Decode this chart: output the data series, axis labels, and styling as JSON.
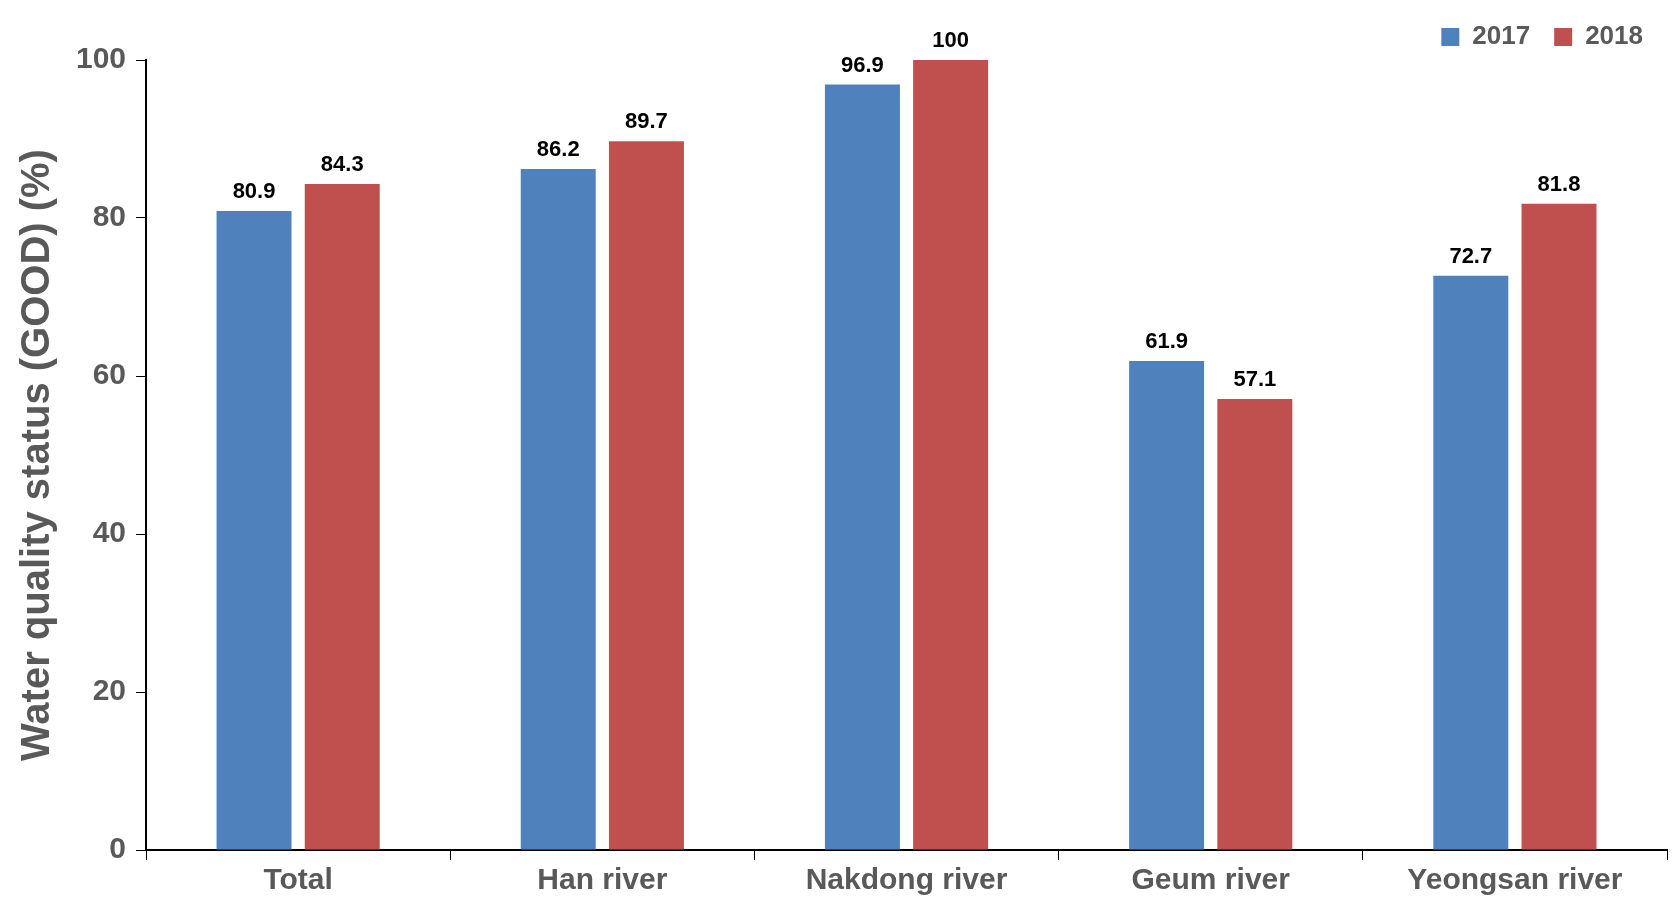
{
  "chart_data": {
    "type": "bar",
    "ylabel": "Water quality status (GOOD) (%)",
    "categories": [
      "Total",
      "Han river",
      "Nakdong river",
      "Geum river",
      "Yeongsan river"
    ],
    "series": [
      {
        "name": "2017",
        "color": "#4f81bd",
        "values": [
          80.9,
          86.2,
          96.9,
          61.9,
          72.7
        ]
      },
      {
        "name": "2018",
        "color": "#c0504d",
        "values": [
          84.3,
          89.7,
          100,
          57.1,
          81.8
        ]
      }
    ],
    "ylim": [
      0,
      100
    ],
    "yticks": [
      0,
      20,
      40,
      60,
      80,
      100
    ],
    "grid": false,
    "legend": "top right",
    "data_labels": true
  }
}
